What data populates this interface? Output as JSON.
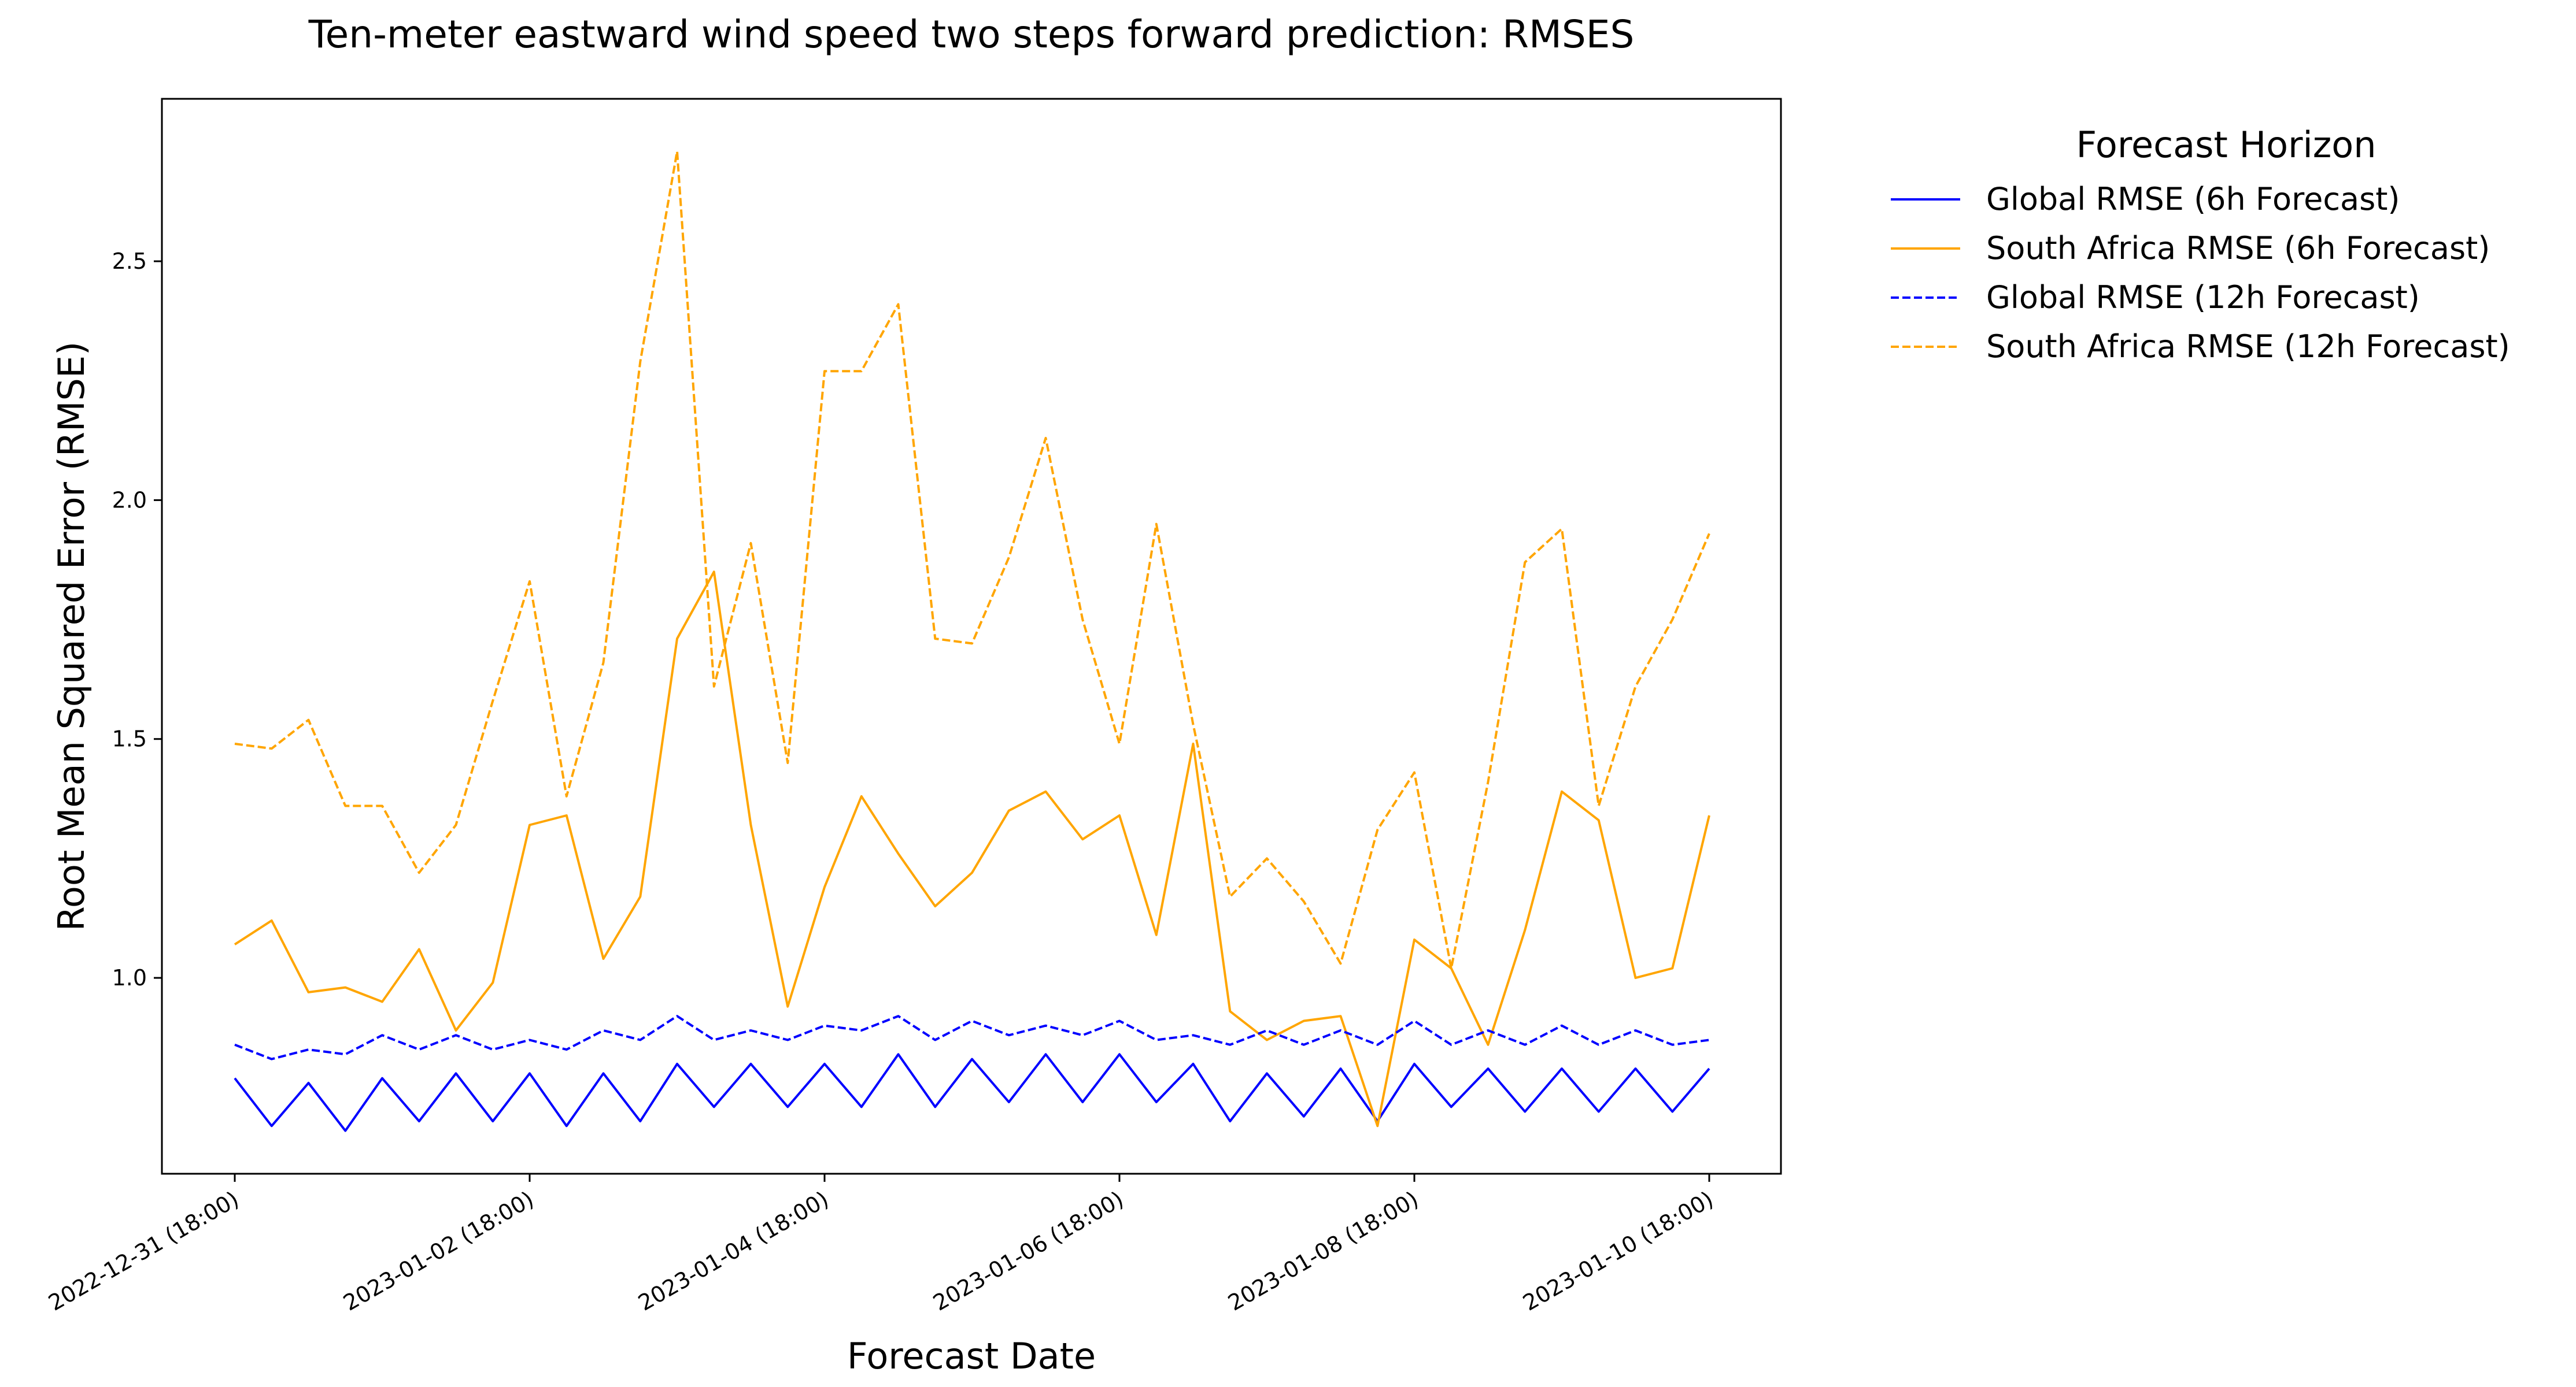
{
  "chart_data": {
    "type": "line",
    "title": "Ten-meter eastward wind speed two steps forward prediction: RMSES",
    "xlabel": "Forecast Date",
    "ylabel": "Root Mean Squared Error (RMSE)",
    "ylim": [
      0.59,
      2.84
    ],
    "y_ticks": [
      1.0,
      1.5,
      2.0,
      2.5
    ],
    "x_ticks": [
      {
        "label": "2022-12-31 (18:00)",
        "index": 0
      },
      {
        "label": "2023-01-02 (18:00)",
        "index": 8
      },
      {
        "label": "2023-01-04 (18:00)",
        "index": 16
      },
      {
        "label": "2023-01-06 (18:00)",
        "index": 24
      },
      {
        "label": "2023-01-08 (18:00)",
        "index": 32
      },
      {
        "label": "2023-01-10 (18:00)",
        "index": 40
      }
    ],
    "x": [
      "2022-12-31 18:00",
      "2023-01-01 00:00",
      "2023-01-01 06:00",
      "2023-01-01 12:00",
      "2023-01-01 18:00",
      "2023-01-02 00:00",
      "2023-01-02 06:00",
      "2023-01-02 12:00",
      "2023-01-02 18:00",
      "2023-01-03 00:00",
      "2023-01-03 06:00",
      "2023-01-03 12:00",
      "2023-01-03 18:00",
      "2023-01-04 00:00",
      "2023-01-04 06:00",
      "2023-01-04 12:00",
      "2023-01-04 18:00",
      "2023-01-05 00:00",
      "2023-01-05 06:00",
      "2023-01-05 12:00",
      "2023-01-05 18:00",
      "2023-01-06 00:00",
      "2023-01-06 06:00",
      "2023-01-06 12:00",
      "2023-01-06 18:00",
      "2023-01-07 00:00",
      "2023-01-07 06:00",
      "2023-01-07 12:00",
      "2023-01-07 18:00",
      "2023-01-08 00:00",
      "2023-01-08 06:00",
      "2023-01-08 12:00",
      "2023-01-08 18:00",
      "2023-01-09 00:00",
      "2023-01-09 06:00",
      "2023-01-09 12:00",
      "2023-01-09 18:00",
      "2023-01-10 00:00",
      "2023-01-10 06:00",
      "2023-01-10 12:00",
      "2023-01-10 18:00"
    ],
    "legend": {
      "title": "Forecast Horizon",
      "placement": "outside-right-top"
    },
    "series": [
      {
        "name": "Global RMSE (6h Forecast)",
        "color": "#0000ff",
        "style": "solid",
        "values": [
          0.79,
          0.69,
          0.78,
          0.68,
          0.79,
          0.7,
          0.8,
          0.7,
          0.8,
          0.69,
          0.8,
          0.7,
          0.82,
          0.73,
          0.82,
          0.73,
          0.82,
          0.73,
          0.84,
          0.73,
          0.83,
          0.74,
          0.84,
          0.74,
          0.84,
          0.74,
          0.82,
          0.7,
          0.8,
          0.71,
          0.81,
          0.7,
          0.82,
          0.73,
          0.81,
          0.72,
          0.81,
          0.72,
          0.81,
          0.72,
          0.81
        ]
      },
      {
        "name": "South Africa RMSE (6h Forecast)",
        "color": "#ffa500",
        "style": "solid",
        "values": [
          1.07,
          1.12,
          0.97,
          0.98,
          0.95,
          1.06,
          0.89,
          0.99,
          1.32,
          1.34,
          1.04,
          1.17,
          1.71,
          1.85,
          1.32,
          0.94,
          1.19,
          1.38,
          1.26,
          1.15,
          1.22,
          1.35,
          1.39,
          1.29,
          1.34,
          1.09,
          1.49,
          0.93,
          0.87,
          0.91,
          0.92,
          0.69,
          1.08,
          1.02,
          0.86,
          1.1,
          1.39,
          1.33,
          1.0,
          1.02,
          1.34
        ]
      },
      {
        "name": "Global RMSE (12h Forecast)",
        "color": "#0000ff",
        "style": "dashed",
        "values": [
          0.86,
          0.83,
          0.85,
          0.84,
          0.88,
          0.85,
          0.88,
          0.85,
          0.87,
          0.85,
          0.89,
          0.87,
          0.92,
          0.87,
          0.89,
          0.87,
          0.9,
          0.89,
          0.92,
          0.87,
          0.91,
          0.88,
          0.9,
          0.88,
          0.91,
          0.87,
          0.88,
          0.86,
          0.89,
          0.86,
          0.89,
          0.86,
          0.91,
          0.86,
          0.89,
          0.86,
          0.9,
          0.86,
          0.89,
          0.86,
          0.87
        ]
      },
      {
        "name": "South Africa RMSE (12h Forecast)",
        "color": "#ffa500",
        "style": "dashed",
        "values": [
          1.49,
          1.48,
          1.54,
          1.36,
          1.36,
          1.22,
          1.32,
          1.58,
          1.83,
          1.38,
          1.66,
          2.29,
          2.73,
          1.61,
          1.91,
          1.45,
          2.27,
          2.27,
          2.41,
          1.71,
          1.7,
          1.88,
          2.13,
          1.75,
          1.49,
          1.95,
          1.53,
          1.17,
          1.25,
          1.16,
          1.03,
          1.31,
          1.43,
          1.02,
          1.41,
          1.87,
          1.94,
          1.36,
          1.61,
          1.75,
          1.93
        ]
      }
    ]
  }
}
